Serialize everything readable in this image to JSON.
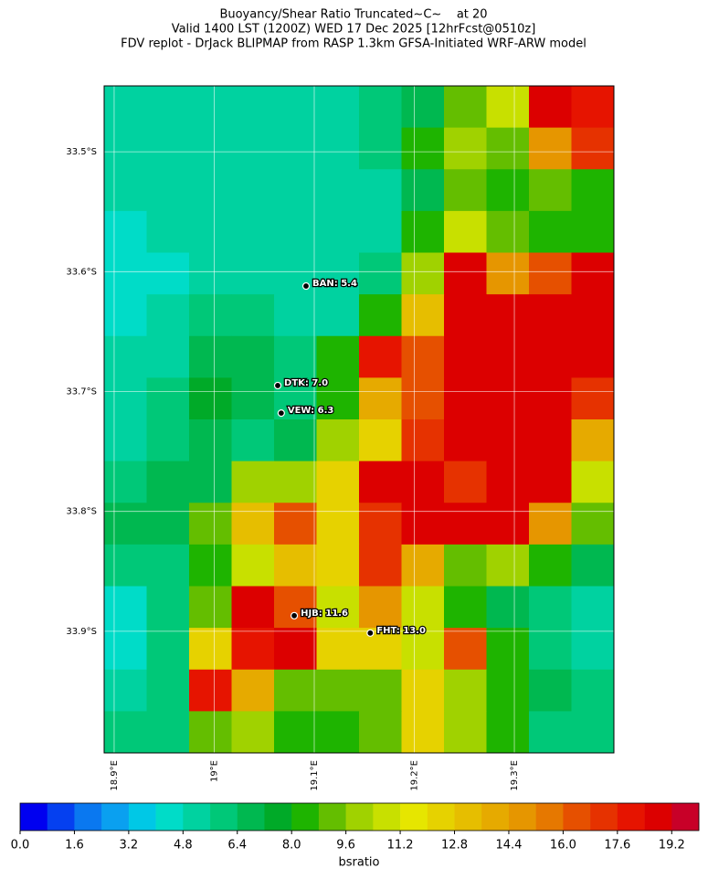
{
  "chart_data": {
    "type": "heatmap",
    "title": [
      "Buoyancy/Shear Ratio Truncated~C~    at 20",
      "Valid 1400 LST (1200Z) WED 17 Dec 2025 [12hrFcst@0510z]",
      "FDV replot - DrJack BLIPMAP from RASP 1.3km GFSA-Initiated WRF-ARW model"
    ],
    "xlim": [
      18.89,
      19.3995
    ],
    "ylim": [
      -34.0015,
      -33.445
    ],
    "xticks": [
      {
        "value": 18.9,
        "label": "18.9°E"
      },
      {
        "value": 19.0,
        "label": "19°E"
      },
      {
        "value": 19.1,
        "label": "19.1°E"
      },
      {
        "value": 19.2,
        "label": "19.2°E"
      },
      {
        "value": 19.3,
        "label": "19.3°E"
      }
    ],
    "yticks": [
      {
        "value": -33.5,
        "label": "33.5°S"
      },
      {
        "value": -33.6,
        "label": "33.6°S"
      },
      {
        "value": -33.7,
        "label": "33.7°S"
      },
      {
        "value": -33.8,
        "label": "33.8°S"
      },
      {
        "value": -33.9,
        "label": "33.9°S"
      }
    ],
    "grid": true,
    "values": [
      [
        5.5,
        5.5,
        5.5,
        5.5,
        5.5,
        5.5,
        6,
        7,
        9,
        11,
        19,
        18
      ],
      [
        5.5,
        5.5,
        5.5,
        5.5,
        5.5,
        5.5,
        6,
        8,
        10,
        9,
        15,
        17
      ],
      [
        5.5,
        5.5,
        5.5,
        5.5,
        5.5,
        5.5,
        5.5,
        7,
        9,
        8,
        9,
        8
      ],
      [
        4.5,
        5,
        5.5,
        5.5,
        5.5,
        5,
        5.5,
        8,
        11,
        9,
        8,
        8
      ],
      [
        4.5,
        4.5,
        5,
        5.5,
        5.5,
        5.5,
        6,
        10,
        19,
        15,
        16,
        19
      ],
      [
        4.5,
        5,
        6,
        6,
        5.5,
        5.5,
        8,
        13,
        19,
        19,
        19,
        19
      ],
      [
        5,
        5.5,
        6.5,
        6.5,
        6,
        8,
        18,
        16,
        19,
        19,
        19,
        19
      ],
      [
        5.5,
        6,
        7.5,
        6.5,
        6,
        8,
        14,
        16,
        19,
        19,
        19,
        17
      ],
      [
        5.5,
        6,
        6.5,
        6,
        7,
        10,
        12,
        17,
        19,
        19,
        19,
        14
      ],
      [
        6,
        6.5,
        7,
        10,
        10,
        12,
        19,
        19,
        17,
        19,
        19,
        11
      ],
      [
        6.5,
        6.5,
        9,
        13,
        16,
        12,
        17,
        19,
        19,
        19,
        15,
        9
      ],
      [
        6,
        6,
        8,
        11,
        13,
        12,
        17,
        14,
        9,
        10,
        8,
        7
      ],
      [
        4.5,
        6,
        9,
        19,
        16,
        11,
        15,
        11,
        8,
        7,
        6,
        5
      ],
      [
        4.5,
        6,
        12,
        18,
        19,
        12,
        12,
        11,
        16,
        8,
        6,
        5
      ],
      [
        5,
        6,
        18,
        14,
        9,
        9,
        9,
        12,
        10,
        8,
        7,
        6
      ],
      [
        6,
        6,
        9,
        10,
        8,
        8,
        9,
        12,
        10,
        8,
        6,
        6
      ]
    ],
    "points": [
      {
        "label": "BAN: 5.4",
        "x": 19.0918,
        "y": -33.612
      },
      {
        "label": "DTK: 7.0",
        "x": 19.0635,
        "y": -33.695
      },
      {
        "label": "VEW: 6.3",
        "x": 19.067,
        "y": -33.718
      },
      {
        "label": "HJB: 11.6",
        "x": 19.08,
        "y": -33.887
      },
      {
        "label": "FHT: 13.0",
        "x": 19.156,
        "y": -33.9015
      }
    ],
    "colorbar": {
      "label": "bsratio",
      "clim": [
        0,
        20
      ],
      "colors": [
        "#0000f0",
        "#0540f0",
        "#0a78f0",
        "#0aa0f0",
        "#00c8e6",
        "#00dcc8",
        "#00d2a0",
        "#00c878",
        "#00b850",
        "#00aa28",
        "#1eb400",
        "#64be00",
        "#a0d200",
        "#c8e000",
        "#e6e600",
        "#e6d200",
        "#e6be00",
        "#e6aa00",
        "#e69600",
        "#e67800",
        "#e65000",
        "#e63200",
        "#e61400",
        "#dc0000",
        "#c80028"
      ],
      "ticks": [
        {
          "value": 0,
          "label": "0.0"
        },
        {
          "value": 1.6,
          "label": "1.6"
        },
        {
          "value": 3.2,
          "label": "3.2"
        },
        {
          "value": 4.8,
          "label": "4.8"
        },
        {
          "value": 6.4,
          "label": "6.4"
        },
        {
          "value": 8,
          "label": "8.0"
        },
        {
          "value": 9.6,
          "label": "9.6"
        },
        {
          "value": 11.2,
          "label": "11.2"
        },
        {
          "value": 12.8,
          "label": "12.8"
        },
        {
          "value": 14.4,
          "label": "14.4"
        },
        {
          "value": 16,
          "label": "16.0"
        },
        {
          "value": 17.6,
          "label": "17.6"
        },
        {
          "value": 19.2,
          "label": "19.2"
        }
      ]
    }
  }
}
